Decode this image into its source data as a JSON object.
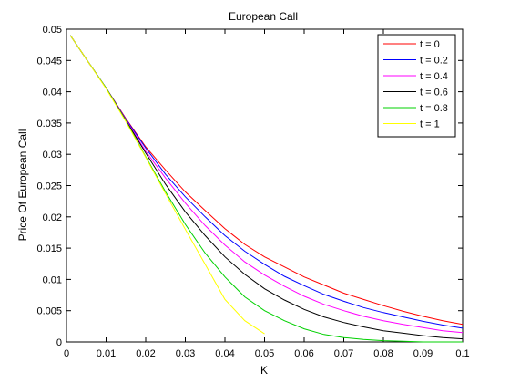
{
  "chart_data": {
    "type": "line",
    "title": "European Call",
    "xlabel": "K",
    "ylabel": "Price Of European Call",
    "xlim": [
      0,
      0.1
    ],
    "ylim": [
      0,
      0.05
    ],
    "xticks": [
      0,
      0.01,
      0.02,
      0.03,
      0.04,
      0.05,
      0.06,
      0.07,
      0.08,
      0.09,
      0.1
    ],
    "xtick_labels": [
      "0",
      "0.01",
      "0.02",
      "0.03",
      "0.04",
      "0.05",
      "0.06",
      "0.07",
      "0.08",
      "0.09",
      "0.1"
    ],
    "yticks": [
      0,
      0.005,
      0.01,
      0.015,
      0.02,
      0.025,
      0.03,
      0.035,
      0.04,
      0.045,
      0.05
    ],
    "ytick_labels": [
      "0",
      "0.005",
      "0.01",
      "0.015",
      "0.02",
      "0.025",
      "0.03",
      "0.035",
      "0.04",
      "0.045",
      "0.05"
    ],
    "grid": false,
    "legend_position": "top-right",
    "x": [
      0.001,
      0.005,
      0.01,
      0.015,
      0.02,
      0.025,
      0.03,
      0.035,
      0.04,
      0.045,
      0.05,
      0.055,
      0.06,
      0.065,
      0.07,
      0.075,
      0.08,
      0.085,
      0.09,
      0.095,
      0.1
    ],
    "series": [
      {
        "name": "t = 0",
        "color": "#ff0000",
        "values": [
          0.049,
          0.0452,
          0.0406,
          0.0357,
          0.0312,
          0.0275,
          0.024,
          0.021,
          0.0181,
          0.0156,
          0.0136,
          0.012,
          0.0104,
          0.0091,
          0.0078,
          0.0068,
          0.0058,
          0.0049,
          0.0041,
          0.0034,
          0.0028
        ]
      },
      {
        "name": "t = 0.2",
        "color": "#0000ff",
        "values": [
          0.049,
          0.0452,
          0.0406,
          0.0356,
          0.031,
          0.0268,
          0.0232,
          0.02,
          0.017,
          0.0145,
          0.0124,
          0.0105,
          0.009,
          0.0076,
          0.0065,
          0.0055,
          0.0047,
          0.004,
          0.0033,
          0.0027,
          0.0022
        ]
      },
      {
        "name": "t = 0.4",
        "color": "#ff00ff",
        "values": [
          0.049,
          0.0452,
          0.0406,
          0.0355,
          0.0305,
          0.0262,
          0.0222,
          0.0186,
          0.0155,
          0.0128,
          0.0107,
          0.0089,
          0.0073,
          0.006,
          0.005,
          0.0041,
          0.0034,
          0.0028,
          0.0023,
          0.0018,
          0.0015
        ]
      },
      {
        "name": "t = 0.6",
        "color": "#000000",
        "values": [
          0.049,
          0.0452,
          0.0406,
          0.0354,
          0.0302,
          0.0252,
          0.0208,
          0.017,
          0.0136,
          0.0108,
          0.0085,
          0.0067,
          0.0052,
          0.004,
          0.0031,
          0.0024,
          0.0018,
          0.0014,
          0.001,
          0.0007,
          0.0005
        ]
      },
      {
        "name": "t = 0.8",
        "color": "#00d000",
        "values": [
          0.049,
          0.0452,
          0.0406,
          0.0353,
          0.0296,
          0.024,
          0.0188,
          0.0142,
          0.0104,
          0.0072,
          0.005,
          0.0034,
          0.0021,
          0.0012,
          0.0007,
          0.0004,
          0.0002,
          0.0001,
          0.0,
          0.0,
          0.0
        ]
      },
      {
        "name": "t = 1",
        "color": "#ffff00",
        "values": [
          0.049,
          0.0452,
          0.0405,
          0.0352,
          0.0295,
          0.0237,
          0.018,
          0.0124,
          0.0068,
          0.0034,
          0.0013,
          null,
          null,
          null,
          null,
          null,
          null,
          null,
          null,
          null,
          null
        ]
      }
    ]
  }
}
